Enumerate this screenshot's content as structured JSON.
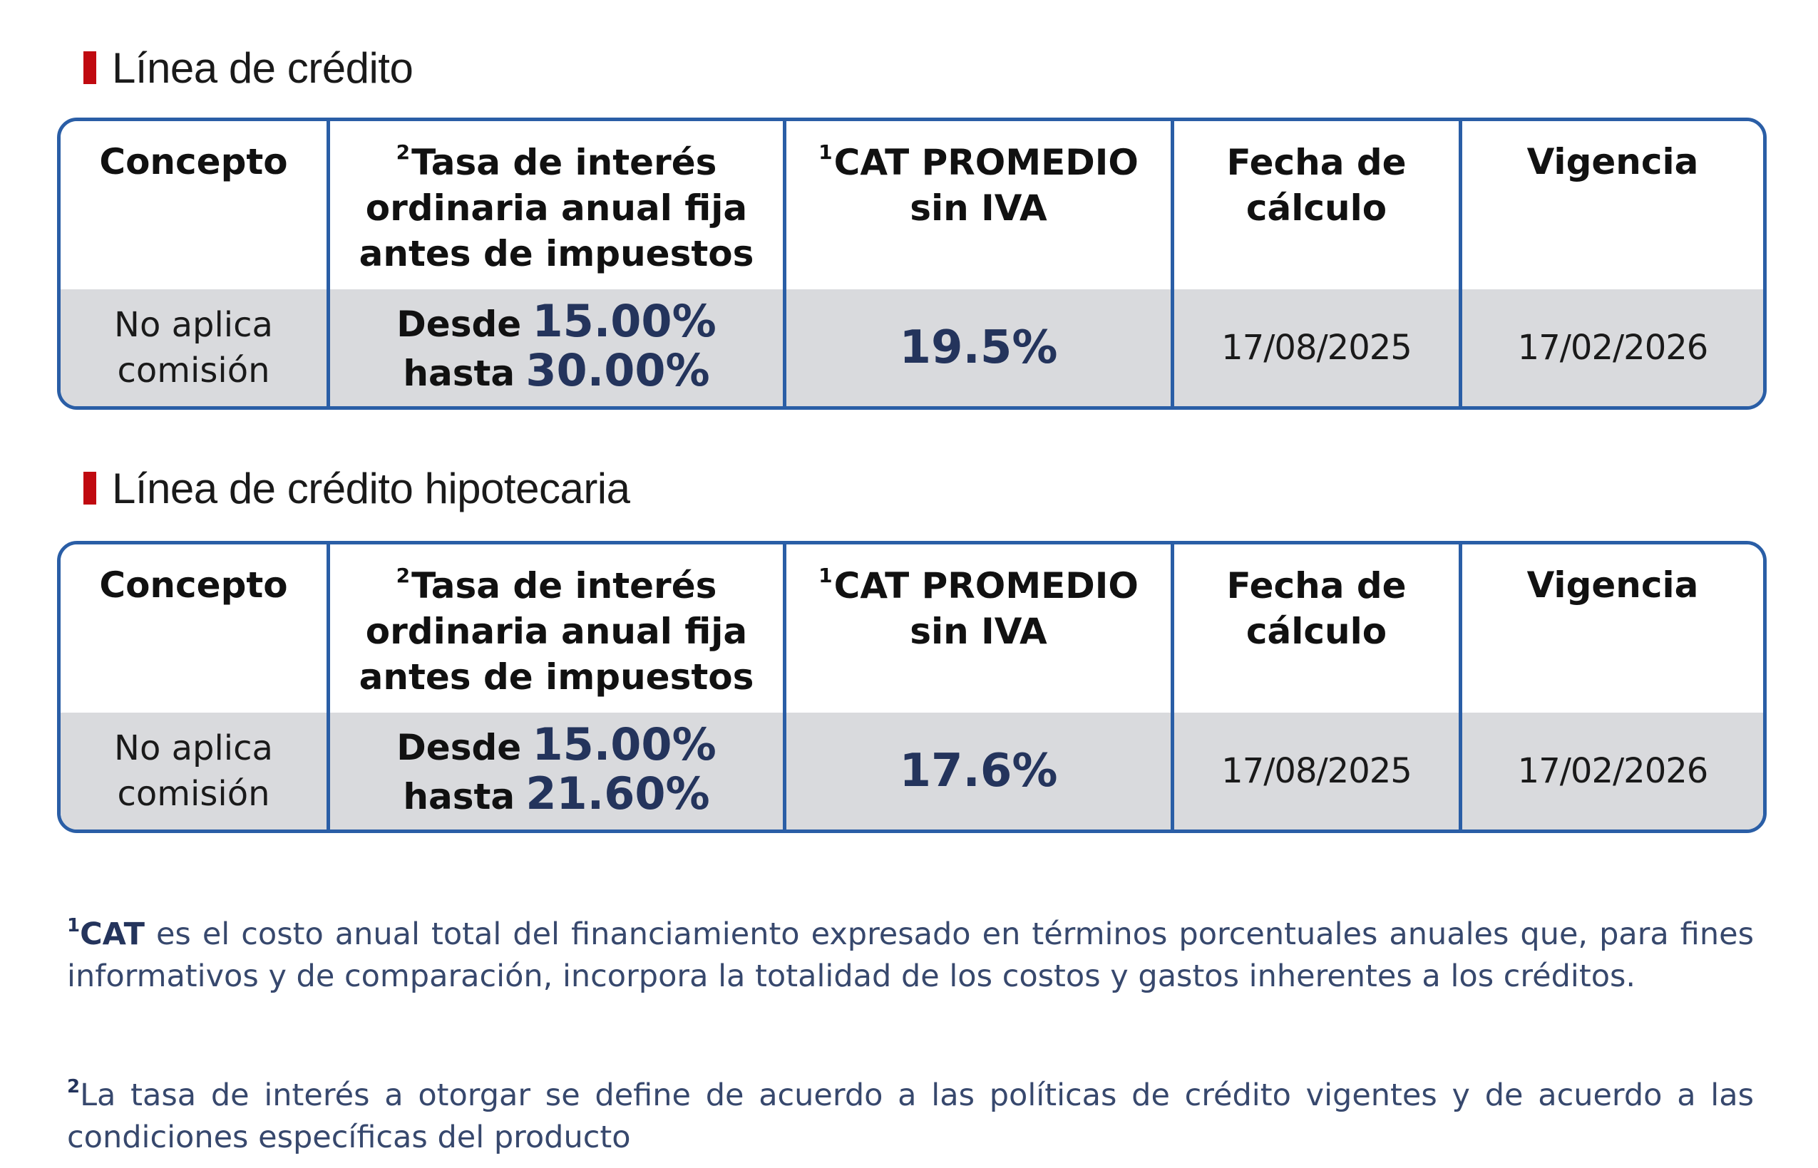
{
  "sections": [
    {
      "title": "Línea de crédito",
      "headers": {
        "concepto": "Concepto",
        "tasa_sup": "2",
        "tasa_lines": [
          "Tasa de interés",
          "ordinaria anual fija",
          "antes de impuestos"
        ],
        "cat_sup": "1",
        "cat_lines": [
          "CAT PROMEDIO",
          "sin IVA"
        ],
        "fecha_lines": [
          "Fecha de",
          "cálculo"
        ],
        "vigencia": "Vigencia"
      },
      "row": {
        "concepto_lines": [
          "No aplica",
          "comisión"
        ],
        "desde_label": "Desde",
        "desde_value": "15.00%",
        "hasta_label": "hasta",
        "hasta_value": "30.00%",
        "cat": "19.5%",
        "fecha": "17/08/2025",
        "vigencia": "17/02/2026"
      }
    },
    {
      "title": "Línea de crédito hipotecaria",
      "headers": {
        "concepto": "Concepto",
        "tasa_sup": "2",
        "tasa_lines": [
          "Tasa de interés",
          "ordinaria anual fija",
          "antes de impuestos"
        ],
        "cat_sup": "1",
        "cat_lines": [
          "CAT PROMEDIO",
          "sin IVA"
        ],
        "fecha_lines": [
          "Fecha de",
          "cálculo"
        ],
        "vigencia": "Vigencia"
      },
      "row": {
        "concepto_lines": [
          "No aplica",
          "comisión"
        ],
        "desde_label": "Desde",
        "desde_value": "15.00%",
        "hasta_label": "hasta",
        "hasta_value": "21.60%",
        "cat": "17.6%",
        "fecha": "17/08/2025",
        "vigencia": "17/02/2026"
      }
    }
  ],
  "footnotes": [
    {
      "sup": "1",
      "term": "CAT",
      "text": " es el costo anual total del financiamiento expresado en términos porcentuales anuales que, para fines informativos y de comparación, incorpora la totalidad de los costos y gastos inherentes a los créditos."
    },
    {
      "sup": "2",
      "text": "La tasa de interés a otorgar se define de acuerdo a las políticas de crédito vigentes y de acuerdo a las condiciones específicas del producto"
    }
  ],
  "colors": {
    "accent_red": "#c00a10",
    "table_border": "#2a5ea6",
    "row_bg": "#d9dadd",
    "value_navy": "#24345c",
    "footnote_text": "#37486d"
  }
}
